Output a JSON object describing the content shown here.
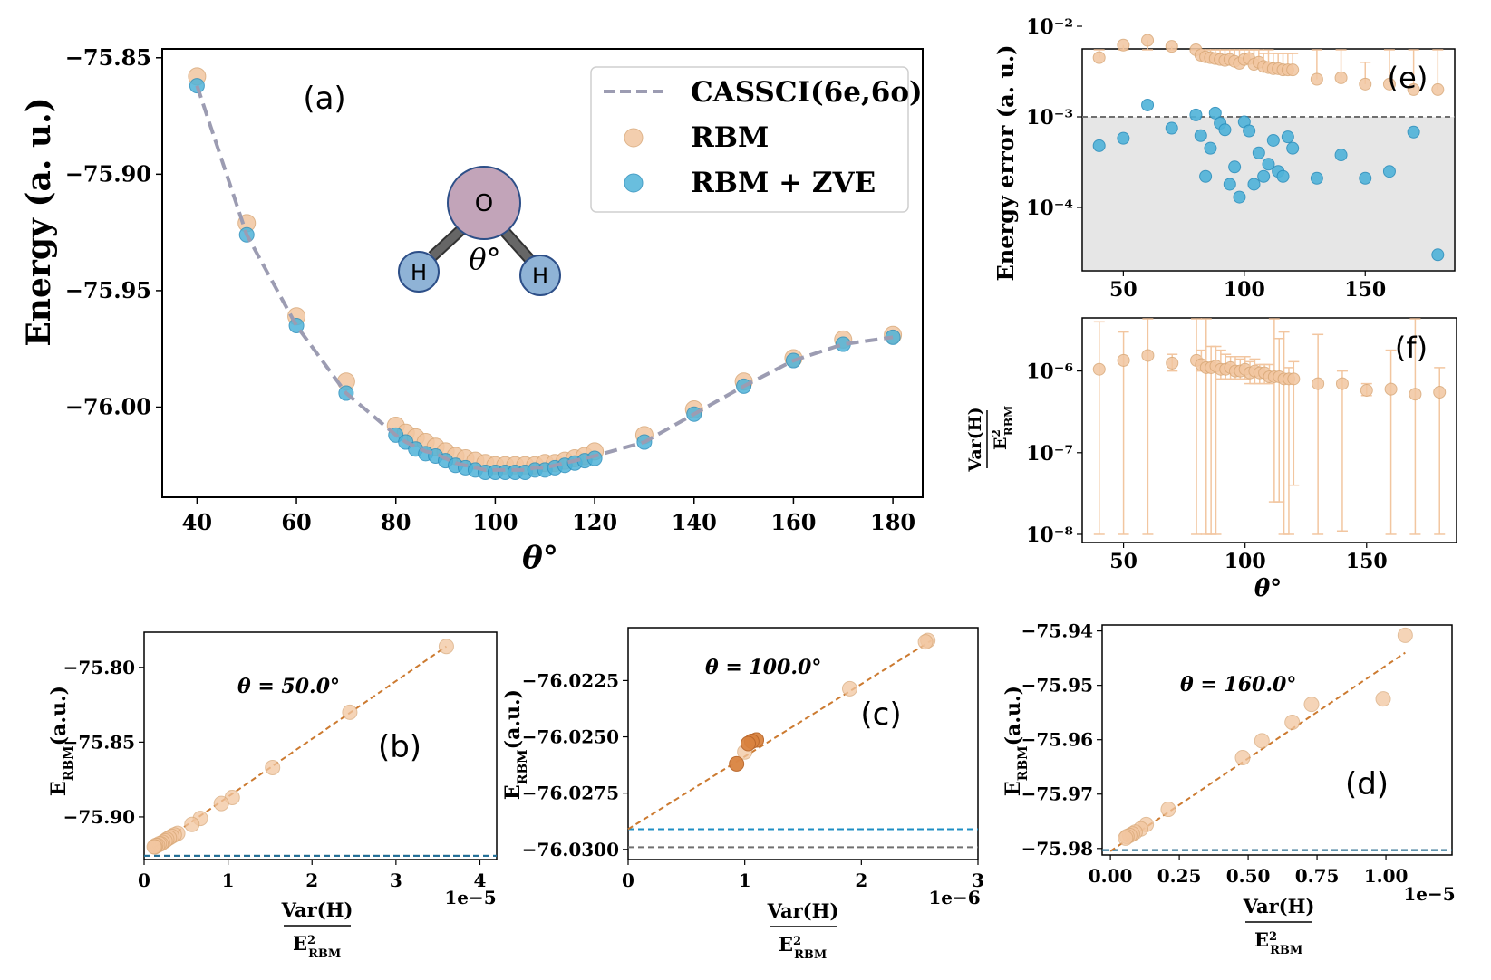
{
  "colors": {
    "rbm": "#f2c6a0",
    "rbm_edge": "#d9a877",
    "zve": "#4fb3d9",
    "zve_edge": "#2b8fbd",
    "cassci": "#9c9cb2",
    "fit": "#cc7a30",
    "hline_gray": "#707070",
    "hline_blue": "#1f8fc4",
    "shade": "#e6e6e6",
    "oxygen": "#c2a4b9",
    "hydrogen": "#8fb3d6",
    "atom_edge": "#2d4f88",
    "bond": "#555555"
  },
  "chart_data": [
    {
      "id": "a",
      "panel_label": "(a)",
      "type": "line",
      "xlabel": "θ°",
      "ylabel": "Energy (a. u.)",
      "xlim": [
        33,
        186
      ],
      "ylim": [
        -76.0387,
        -75.8462
      ],
      "xticks": [
        "40",
        "60",
        "80",
        "100",
        "120",
        "140",
        "160",
        "180"
      ],
      "yticks": [
        "−75.85",
        "−75.90",
        "−75.95",
        "−76.00"
      ],
      "legend_position": "top-right",
      "legend": [
        "CASSCI(6e,6o)",
        "RBM",
        "RBM + ZVE"
      ],
      "molecule": {
        "O": "O",
        "H1": "H",
        "H2": "H",
        "angle": "θ°"
      },
      "x": [
        40,
        50,
        60,
        70,
        80,
        82,
        84,
        86,
        88,
        90,
        92,
        94,
        96,
        98,
        100,
        102,
        104,
        106,
        108,
        110,
        112,
        114,
        116,
        118,
        120,
        130,
        140,
        150,
        160,
        170,
        180
      ],
      "series": [
        {
          "name": "CASSCI(6e,6o)",
          "values": [
            -75.862,
            -75.926,
            -75.965,
            -75.994,
            -76.012,
            -76.015,
            -76.017,
            -76.019,
            -76.02,
            -76.022,
            -76.024,
            -76.025,
            -76.026,
            -76.027,
            -76.027,
            -76.027,
            -76.027,
            -76.027,
            -76.026,
            -76.026,
            -76.025,
            -76.024,
            -76.023,
            -76.022,
            -76.021,
            -76.015,
            -76.003,
            -75.991,
            -75.98,
            -75.973,
            -75.97
          ]
        },
        {
          "name": "RBM",
          "values": [
            -75.858,
            -75.921,
            -75.961,
            -75.989,
            -76.008,
            -76.011,
            -76.013,
            -76.015,
            -76.017,
            -76.019,
            -76.021,
            -76.022,
            -76.023,
            -76.024,
            -76.025,
            -76.025,
            -76.025,
            -76.025,
            -76.025,
            -76.024,
            -76.024,
            -76.023,
            -76.022,
            -76.021,
            -76.019,
            -76.012,
            -76.001,
            -75.989,
            -75.979,
            -75.971,
            -75.969
          ]
        },
        {
          "name": "RBM + ZVE",
          "values": [
            -75.862,
            -75.926,
            -75.965,
            -75.994,
            -76.012,
            -76.015,
            -76.018,
            -76.02,
            -76.021,
            -76.023,
            -76.025,
            -76.026,
            -76.027,
            -76.028,
            -76.028,
            -76.028,
            -76.028,
            -76.028,
            -76.027,
            -76.027,
            -76.026,
            -76.025,
            -76.024,
            -76.023,
            -76.022,
            -76.015,
            -76.003,
            -75.991,
            -75.98,
            -75.973,
            -75.97
          ]
        }
      ]
    },
    {
      "id": "e",
      "panel_label": "(e)",
      "type": "scatter",
      "xlabel": "",
      "ylabel": "Energy  error (a. u.)",
      "yscale": "log",
      "xlim": [
        33,
        187
      ],
      "ylim_log10": [
        -4.7,
        -2.25
      ],
      "xticks": [
        "50",
        "100",
        "150"
      ],
      "yticks": [
        "10⁻²",
        "10⁻³",
        "10⁻⁴"
      ],
      "threshold": 0.001,
      "rbm_errors": {
        "x": [
          40,
          50,
          60,
          70,
          80,
          82,
          84,
          86,
          88,
          90,
          92,
          94,
          96,
          98,
          100,
          102,
          104,
          106,
          108,
          110,
          112,
          114,
          116,
          118,
          120,
          130,
          140,
          150,
          160,
          170,
          180
        ],
        "values": [
          0.0045,
          0.0062,
          0.007,
          0.006,
          0.0055,
          0.0048,
          0.0046,
          0.0045,
          0.0044,
          0.0043,
          0.0042,
          0.0043,
          0.0041,
          0.0039,
          0.0043,
          0.0044,
          0.0038,
          0.004,
          0.0036,
          0.0035,
          0.0034,
          0.0034,
          0.0033,
          0.0033,
          0.0033,
          0.0026,
          0.0027,
          0.0023,
          0.0023,
          0.002,
          0.002
        ],
        "upper": [
          0.033,
          0.028,
          0.035,
          0.012,
          0.052,
          0.045,
          0.009,
          0.008,
          0.007,
          0.006,
          0.009,
          0.008,
          0.007,
          0.006,
          0.014,
          0.007,
          0.006,
          0.006,
          0.005,
          0.006,
          0.005,
          0.005,
          0.005,
          0.005,
          0.005,
          0.007,
          0.016,
          0.004,
          0.008,
          0.05,
          0.0065
        ]
      },
      "zve_errors": {
        "x": [
          40,
          50,
          60,
          70,
          80,
          82,
          84,
          86,
          88,
          90,
          92,
          94,
          96,
          98,
          100,
          102,
          104,
          106,
          108,
          110,
          112,
          114,
          116,
          118,
          120,
          130,
          140,
          150,
          160,
          170,
          180
        ],
        "values": [
          0.00048,
          0.00058,
          0.00135,
          0.00075,
          0.00105,
          0.00062,
          0.00022,
          0.00045,
          0.0011,
          0.00085,
          0.00072,
          0.00018,
          0.00028,
          0.00013,
          0.00088,
          0.0007,
          0.00018,
          0.0004,
          0.00022,
          0.0003,
          0.00055,
          0.00025,
          0.00022,
          0.0006,
          0.00045,
          0.00021,
          0.00038,
          0.00021,
          0.00025,
          0.00068,
          3e-05
        ]
      }
    },
    {
      "id": "f",
      "panel_label": "(f)",
      "type": "scatter",
      "xlabel": "θ°",
      "ylabel_num": "Var(H)",
      "ylabel_den": "E",
      "ylabel_den_sup": "2",
      "ylabel_den_sub": "RBM",
      "yscale": "log",
      "xlim": [
        33,
        187
      ],
      "ylim_log10": [
        -8.1,
        -5.35
      ],
      "xticks": [
        "50",
        "100",
        "150"
      ],
      "yticks": [
        "10⁻⁶",
        "10⁻⁷",
        "10⁻⁸"
      ],
      "x": [
        40,
        50,
        60,
        70,
        80,
        82,
        84,
        86,
        88,
        90,
        92,
        94,
        96,
        98,
        100,
        102,
        104,
        106,
        108,
        110,
        112,
        114,
        116,
        118,
        120,
        130,
        140,
        150,
        160,
        170,
        180
      ],
      "values": [
        1.05e-06,
        1.35e-06,
        1.55e-06,
        1.25e-06,
        1.35e-06,
        1.2e-06,
        1.1e-06,
        1.1e-06,
        1.15e-06,
        1.05e-06,
        1.05e-06,
        1.1e-06,
        1e-06,
        1e-06,
        1.05e-06,
        9.5e-07,
        1e-06,
        9.5e-07,
        9.5e-07,
        8.5e-07,
        8.5e-07,
        8.5e-07,
        8e-07,
        8e-07,
        8e-07,
        7e-07,
        7e-07,
        5.8e-07,
        6e-07,
        5.2e-07,
        5.5e-07
      ],
      "upper": [
        4e-06,
        3e-06,
        5e-06,
        1.6e-06,
        4.5e-06,
        1.8e-06,
        7.5e-06,
        2e-06,
        2e-06,
        1.8e-06,
        1.6e-06,
        1.5e-06,
        1.5e-06,
        1.4e-06,
        1.5e-06,
        1.3e-06,
        1.4e-06,
        1.2e-06,
        1.2e-06,
        1.2e-06,
        5e-06,
        2.5e-06,
        3e-06,
        1.1e-06,
        1.3e-06,
        2.8e-06,
        1e-06,
        7e-07,
        1.8e-06,
        7e-06,
        1.1e-06
      ],
      "lower": [
        1e-08,
        1e-08,
        1e-08,
        1e-06,
        1e-08,
        1e-06,
        1e-08,
        1e-08,
        1e-08,
        8e-07,
        8e-07,
        8e-07,
        8e-07,
        8e-07,
        8e-07,
        7e-07,
        7e-07,
        7e-07,
        7e-07,
        7e-07,
        2.5e-08,
        2.5e-08,
        1e-08,
        1e-08,
        4e-08,
        1e-08,
        1.1e-08,
        5e-07,
        1e-08,
        1e-08,
        1e-08
      ]
    },
    {
      "id": "b",
      "panel_label": "(b)",
      "type": "scatter",
      "annotation": "θ = 50.0°",
      "xlim": [
        0,
        4.2e-05
      ],
      "ylim": [
        -75.9285,
        -75.7765
      ],
      "xticks": [
        "0",
        "1",
        "2",
        "3",
        "4"
      ],
      "xtick_values": [
        0,
        1e-05,
        2e-05,
        3e-05,
        4e-05
      ],
      "xscale_label": "1e−5",
      "yticks": [
        "−75.80",
        "−75.85",
        "−75.90"
      ],
      "ytick_values": [
        -75.8,
        -75.85,
        -75.9
      ],
      "ylabel": "E",
      "ylabel_sub": "RBM",
      "ylabel_tail": "(a.u.)",
      "xlabel_num": "Var(H)",
      "xlabel_den": "E",
      "xlabel_den_sup": "2",
      "xlabel_den_sub": "RBM",
      "points": {
        "x": [
          3.6e-05,
          2.45e-05,
          1.53e-05,
          1.05e-05,
          9.2e-06,
          6.7e-06,
          5.7e-06,
          4e-06,
          3.6e-06,
          3.3e-06,
          3e-06,
          2.7e-06,
          2.5e-06,
          2.2e-06,
          2e-06,
          1.8e-06,
          1.6e-06,
          1.4e-06,
          1.3e-06,
          1.2e-06
        ],
        "y": [
          -75.786,
          -75.83,
          -75.867,
          -75.887,
          -75.891,
          -75.901,
          -75.905,
          -75.911,
          -75.912,
          -75.913,
          -75.914,
          -75.915,
          -75.916,
          -75.917,
          -75.918,
          -75.918,
          -75.919,
          -75.919,
          -75.92,
          -75.92
        ]
      },
      "fit": {
        "x": [
          1.2e-06,
          3.6e-05
        ],
        "y": [
          -75.9205,
          -75.786
        ]
      },
      "hlines": [
        -75.926,
        -75.926
      ]
    },
    {
      "id": "c",
      "panel_label": "(c)",
      "type": "scatter",
      "annotation": "θ = 100.0°",
      "xlim": [
        0,
        3e-06
      ],
      "ylim": [
        -76.03045,
        -76.02015
      ],
      "xticks": [
        "0",
        "1",
        "2",
        "3"
      ],
      "xtick_values": [
        0,
        1e-06,
        2e-06,
        3e-06
      ],
      "xscale_label": "1e−6",
      "yticks": [
        "−76.0225",
        "−76.0250",
        "−76.0275",
        "−76.0300"
      ],
      "ytick_values": [
        -76.0225,
        -76.025,
        -76.0275,
        -76.03
      ],
      "ylabel": "E",
      "ylabel_sub": "RBM",
      "ylabel_tail": "(a.u.)",
      "xlabel_num": "Var(H)",
      "xlabel_den": "E",
      "xlabel_den_sup": "2",
      "xlabel_den_sub": "RBM",
      "points": {
        "x": [
          2.57e-06,
          2.55e-06,
          1.9e-06,
          1.1e-06,
          1.06e-06,
          1.03e-06,
          1e-06,
          9.3e-07
        ],
        "y": [
          -76.02072,
          -76.02078,
          -76.02286,
          -76.02514,
          -76.0252,
          -76.0253,
          -76.02567,
          -76.0262
        ]
      },
      "strong_points": {
        "x": [
          1.1e-06,
          1.06e-06,
          1.03e-06,
          9.3e-07
        ],
        "y": [
          -76.02514,
          -76.0252,
          -76.0253,
          -76.0262
        ]
      },
      "fit": {
        "x": [
          0,
          2.6e-06
        ],
        "y": [
          -76.0291,
          -76.02072
        ]
      },
      "hlines": [
        -76.0299,
        -76.0291
      ]
    },
    {
      "id": "d",
      "panel_label": "(d)",
      "type": "scatter",
      "annotation": "θ = 160.0°",
      "xlim": [
        -3e-07,
        1.24e-05
      ],
      "ylim": [
        -75.9812,
        -75.9389
      ],
      "xticks": [
        "0.00",
        "0.25",
        "0.50",
        "0.75",
        "1.00"
      ],
      "xtick_values": [
        0,
        2.5e-06,
        5e-06,
        7.5e-06,
        1e-05
      ],
      "xscale_label": "1e−5",
      "yticks": [
        "−75.94",
        "−75.95",
        "−75.96",
        "−75.97",
        "−75.98"
      ],
      "ytick_values": [
        -75.94,
        -75.95,
        -75.96,
        -75.97,
        -75.98
      ],
      "ylabel": "E",
      "ylabel_sub": "RBM",
      "ylabel_tail": "(a.u.)",
      "xlabel_num": "Var(H)",
      "xlabel_den": "E",
      "xlabel_den_sup": "2",
      "xlabel_den_sub": "RBM",
      "points": {
        "x": [
          1.07e-05,
          9.9e-06,
          7.3e-06,
          6.6e-06,
          5.5e-06,
          4.8e-06,
          2.1e-06,
          1.3e-06,
          1.1e-06,
          9e-07,
          8e-07,
          7e-07,
          6e-07,
          5.5e-07
        ],
        "y": [
          -75.9408,
          -75.9525,
          -75.9535,
          -75.9568,
          -75.9602,
          -75.9633,
          -75.9728,
          -75.9756,
          -75.9764,
          -75.977,
          -75.9773,
          -75.9776,
          -75.9778,
          -75.9781
        ]
      },
      "fit": {
        "x": [
          0,
          1.07e-05
        ],
        "y": [
          -75.9805,
          -75.944
        ]
      },
      "hlines": [
        -75.9803,
        -75.9803
      ]
    }
  ]
}
